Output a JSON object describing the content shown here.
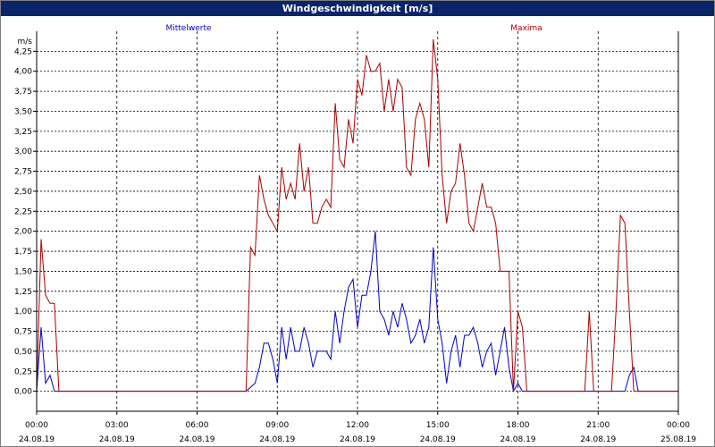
{
  "window": {
    "title": "Windgeschwindigkeit [m/s]"
  },
  "colors": {
    "mean": "#0000cc",
    "max": "#aa0000",
    "title_bg": "#0a246a",
    "grid": "#000000"
  },
  "chart_data": {
    "type": "line",
    "title": "Windgeschwindigkeit [m/s]",
    "ylabel": "m/s",
    "xlabel": "",
    "ylim": [
      -0.25,
      4.5
    ],
    "xlim": [
      "2019-08-24 00:00",
      "2019-08-25 00:00"
    ],
    "grid": true,
    "legend_placement": "top",
    "y_ticks": [
      "0,00",
      "0,25",
      "0,50",
      "0,75",
      "1,00",
      "1,25",
      "1,50",
      "1,75",
      "2,00",
      "2,25",
      "2,50",
      "2,75",
      "3,00",
      "3,25",
      "3,50",
      "3,75",
      "4,00",
      "4,25"
    ],
    "x_ticks": [
      {
        "time": "00:00",
        "date": "24.08.19"
      },
      {
        "time": "03:00",
        "date": "24.08.19"
      },
      {
        "time": "06:00",
        "date": "24.08.19"
      },
      {
        "time": "09:00",
        "date": "24.08.19"
      },
      {
        "time": "12:00",
        "date": "24.08.19"
      },
      {
        "time": "15:00",
        "date": "24.08.19"
      },
      {
        "time": "18:00",
        "date": "24.08.19"
      },
      {
        "time": "21:00",
        "date": "24.08.19"
      },
      {
        "time": "00:00",
        "date": "25.08.19"
      }
    ],
    "series": [
      {
        "name": "Mittelwerte",
        "color": "#0000cc",
        "points": [
          [
            "00:00",
            0.0
          ],
          [
            "00:10",
            0.8
          ],
          [
            "00:20",
            0.1
          ],
          [
            "00:30",
            0.2
          ],
          [
            "00:40",
            0.0
          ],
          [
            "00:50",
            0.0
          ],
          [
            "07:40",
            0.0
          ],
          [
            "07:50",
            0.0
          ],
          [
            "08:00",
            0.05
          ],
          [
            "08:10",
            0.1
          ],
          [
            "08:20",
            0.3
          ],
          [
            "08:30",
            0.6
          ],
          [
            "08:40",
            0.6
          ],
          [
            "08:50",
            0.4
          ],
          [
            "09:00",
            0.1
          ],
          [
            "09:10",
            0.8
          ],
          [
            "09:20",
            0.4
          ],
          [
            "09:30",
            0.8
          ],
          [
            "09:40",
            0.5
          ],
          [
            "09:50",
            0.5
          ],
          [
            "10:00",
            0.8
          ],
          [
            "10:10",
            0.6
          ],
          [
            "10:20",
            0.3
          ],
          [
            "10:30",
            0.5
          ],
          [
            "10:40",
            0.5
          ],
          [
            "10:50",
            0.5
          ],
          [
            "11:00",
            0.4
          ],
          [
            "11:10",
            1.0
          ],
          [
            "11:20",
            0.6
          ],
          [
            "11:30",
            1.0
          ],
          [
            "11:40",
            1.3
          ],
          [
            "11:50",
            1.4
          ],
          [
            "12:00",
            0.8
          ],
          [
            "12:10",
            1.2
          ],
          [
            "12:20",
            1.2
          ],
          [
            "12:30",
            1.5
          ],
          [
            "12:40",
            2.0
          ],
          [
            "12:50",
            1.0
          ],
          [
            "13:00",
            0.9
          ],
          [
            "13:10",
            0.7
          ],
          [
            "13:20",
            1.0
          ],
          [
            "13:30",
            0.8
          ],
          [
            "13:40",
            1.1
          ],
          [
            "13:50",
            0.9
          ],
          [
            "14:00",
            0.6
          ],
          [
            "14:10",
            0.7
          ],
          [
            "14:20",
            0.9
          ],
          [
            "14:30",
            0.6
          ],
          [
            "14:40",
            0.8
          ],
          [
            "14:50",
            1.8
          ],
          [
            "15:00",
            0.9
          ],
          [
            "15:10",
            0.6
          ],
          [
            "15:20",
            0.1
          ],
          [
            "15:30",
            0.5
          ],
          [
            "15:40",
            0.7
          ],
          [
            "15:50",
            0.3
          ],
          [
            "16:00",
            0.7
          ],
          [
            "16:10",
            0.7
          ],
          [
            "16:20",
            0.8
          ],
          [
            "16:30",
            0.6
          ],
          [
            "16:40",
            0.3
          ],
          [
            "16:50",
            0.5
          ],
          [
            "17:00",
            0.6
          ],
          [
            "17:10",
            0.2
          ],
          [
            "17:20",
            0.5
          ],
          [
            "17:30",
            0.8
          ],
          [
            "17:40",
            0.3
          ],
          [
            "17:50",
            0.0
          ],
          [
            "18:00",
            0.1
          ],
          [
            "18:10",
            0.0
          ],
          [
            "18:20",
            0.0
          ],
          [
            "21:00",
            0.0
          ],
          [
            "21:30",
            0.0
          ],
          [
            "22:00",
            0.0
          ],
          [
            "22:10",
            0.2
          ],
          [
            "22:20",
            0.3
          ],
          [
            "22:30",
            0.0
          ],
          [
            "23:59",
            0.0
          ]
        ]
      },
      {
        "name": "Maxima",
        "color": "#aa0000",
        "points": [
          [
            "00:00",
            0.0
          ],
          [
            "00:10",
            1.9
          ],
          [
            "00:20",
            1.2
          ],
          [
            "00:30",
            1.1
          ],
          [
            "00:40",
            1.1
          ],
          [
            "00:50",
            0.0
          ],
          [
            "07:40",
            0.0
          ],
          [
            "07:50",
            0.0
          ],
          [
            "08:00",
            1.8
          ],
          [
            "08:10",
            1.7
          ],
          [
            "08:20",
            2.7
          ],
          [
            "08:30",
            2.4
          ],
          [
            "08:40",
            2.2
          ],
          [
            "08:50",
            2.1
          ],
          [
            "09:00",
            2.0
          ],
          [
            "09:10",
            2.8
          ],
          [
            "09:20",
            2.4
          ],
          [
            "09:30",
            2.6
          ],
          [
            "09:40",
            2.4
          ],
          [
            "09:50",
            3.1
          ],
          [
            "10:00",
            2.5
          ],
          [
            "10:10",
            2.8
          ],
          [
            "10:20",
            2.1
          ],
          [
            "10:30",
            2.1
          ],
          [
            "10:40",
            2.3
          ],
          [
            "10:50",
            2.4
          ],
          [
            "11:00",
            2.3
          ],
          [
            "11:10",
            3.6
          ],
          [
            "11:20",
            2.9
          ],
          [
            "11:30",
            2.8
          ],
          [
            "11:40",
            3.4
          ],
          [
            "11:50",
            3.1
          ],
          [
            "12:00",
            3.9
          ],
          [
            "12:10",
            3.7
          ],
          [
            "12:20",
            4.2
          ],
          [
            "12:30",
            4.0
          ],
          [
            "12:40",
            4.0
          ],
          [
            "12:50",
            4.1
          ],
          [
            "13:00",
            3.5
          ],
          [
            "13:10",
            3.9
          ],
          [
            "13:20",
            3.5
          ],
          [
            "13:30",
            3.9
          ],
          [
            "13:40",
            3.8
          ],
          [
            "13:50",
            2.8
          ],
          [
            "14:00",
            2.7
          ],
          [
            "14:10",
            3.4
          ],
          [
            "14:20",
            3.6
          ],
          [
            "14:30",
            3.4
          ],
          [
            "14:40",
            2.8
          ],
          [
            "14:50",
            4.4
          ],
          [
            "15:00",
            3.9
          ],
          [
            "15:10",
            2.7
          ],
          [
            "15:20",
            2.1
          ],
          [
            "15:30",
            2.5
          ],
          [
            "15:40",
            2.6
          ],
          [
            "15:50",
            3.1
          ],
          [
            "16:00",
            2.7
          ],
          [
            "16:10",
            2.1
          ],
          [
            "16:20",
            2.0
          ],
          [
            "16:30",
            2.3
          ],
          [
            "16:40",
            2.6
          ],
          [
            "16:50",
            2.3
          ],
          [
            "17:00",
            2.3
          ],
          [
            "17:10",
            2.1
          ],
          [
            "17:20",
            1.5
          ],
          [
            "17:30",
            1.5
          ],
          [
            "17:40",
            1.5
          ],
          [
            "17:50",
            0.0
          ],
          [
            "18:00",
            1.0
          ],
          [
            "18:10",
            0.8
          ],
          [
            "18:20",
            0.0
          ],
          [
            "18:30",
            0.0
          ],
          [
            "20:30",
            0.0
          ],
          [
            "20:40",
            1.0
          ],
          [
            "20:50",
            0.0
          ],
          [
            "21:00",
            0.0
          ],
          [
            "21:30",
            0.0
          ],
          [
            "21:40",
            1.0
          ],
          [
            "21:50",
            2.2
          ],
          [
            "22:00",
            2.1
          ],
          [
            "22:10",
            1.0
          ],
          [
            "22:20",
            0.0
          ],
          [
            "23:59",
            0.0
          ]
        ]
      }
    ]
  }
}
